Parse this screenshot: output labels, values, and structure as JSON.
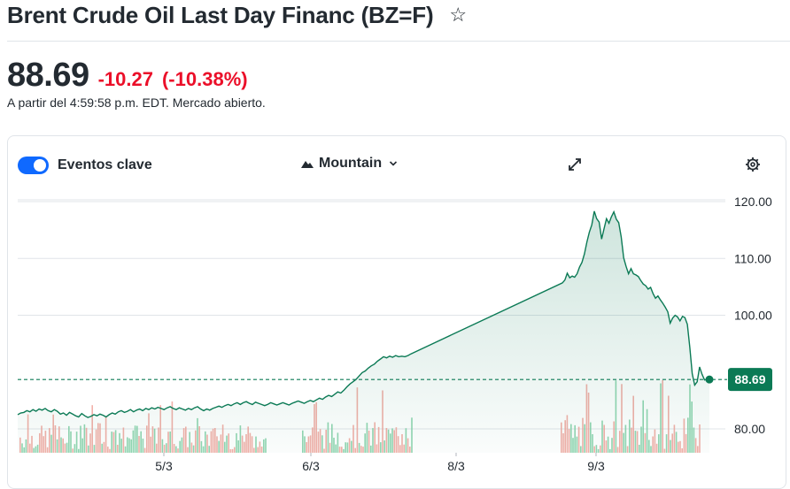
{
  "header": {
    "title": "Brent Crude Oil Last Day Financ (BZ=F)",
    "star_icon": "star-outline-icon"
  },
  "quote": {
    "price": "88.69",
    "change": "-10.27",
    "change_percent": "(-10.38%)",
    "market_time": "A partir del 4:59:58 p.m. EDT. Mercado abierto.",
    "down_color": "#eb0f29"
  },
  "toolbar": {
    "events_label": "Eventos clave",
    "events_enabled": true,
    "chart_type_label": "Mountain",
    "expand_icon": "expand-icon",
    "settings_icon": "gear-icon"
  },
  "chart_data": {
    "type": "area",
    "x_ticks": [
      "5/3",
      "6/3",
      "8/3",
      "9/3"
    ],
    "y_ticks": [
      "120.00",
      "110.00",
      "100.00",
      "80.00"
    ],
    "ylim": [
      76,
      124
    ],
    "current_value_label": "88.69",
    "current_value": 88.69,
    "line_color": "#0b7a55",
    "series": [
      {
        "values": [
          82.5,
          82.8,
          82.9,
          83.2,
          83.0,
          83.4,
          83.1,
          83.5,
          83.3,
          83.6,
          83.2,
          83.0,
          83.4,
          83.1,
          82.6,
          82.8,
          82.4,
          82.9,
          82.6,
          82.3,
          82.1,
          82.7,
          82.3,
          82.0,
          82.2,
          82.5,
          82.3,
          82.6,
          82.4,
          82.1,
          82.5,
          82.8,
          82.6,
          83.0,
          83.2,
          82.9,
          83.1,
          83.4,
          83.0,
          83.3,
          83.5,
          83.2,
          83.6,
          83.4,
          83.7,
          83.5,
          83.8,
          83.6,
          83.4,
          83.7,
          83.9,
          83.6,
          83.4,
          83.7,
          83.5,
          83.3,
          83.6,
          83.4,
          83.7,
          83.9,
          83.5,
          83.2,
          83.5,
          83.3,
          83.6,
          83.8,
          84.0,
          83.8,
          84.1,
          84.3,
          84.1,
          84.4,
          84.6,
          84.3,
          84.6,
          84.8,
          84.5,
          84.3,
          84.7,
          84.5,
          84.3,
          84.1,
          84.3,
          84.6,
          84.4,
          84.2,
          84.4,
          84.6,
          84.4,
          84.2,
          84.5,
          84.7,
          84.9,
          84.7,
          84.5,
          84.8,
          85.0,
          84.8,
          85.1,
          85.4,
          85.2,
          85.6,
          85.9,
          85.7,
          86.1,
          86.5,
          86.3,
          86.8,
          87.4,
          87.9,
          88.3,
          88.7,
          89.3,
          89.9,
          90.2,
          90.7,
          91.1,
          91.4,
          91.9,
          92.3,
          92.7,
          92.5,
          92.8,
          92.6,
          92.9,
          92.7,
          92.8,
          92.7,
          92.9,
          93.2
        ],
        "gap_to": [
          105.7,
          106.2,
          107.4,
          106.6,
          106.9,
          106.7,
          107.3,
          108.5,
          109.3,
          110.8,
          112.9,
          114.6,
          115.9,
          118.3,
          117.0,
          116.4,
          113.4,
          115.2,
          117.0,
          116.2,
          117.3,
          118.2,
          116.9,
          116.3,
          113.8,
          110.1,
          108.6,
          107.3,
          108.2,
          107.3,
          107.1,
          106.8,
          106.1,
          105.5,
          105.2,
          104.6,
          104.9,
          103.8,
          103.0,
          103.4,
          102.7,
          102.1,
          101.4,
          100.6,
          98.6,
          99.5,
          100.0,
          99.7,
          99.0,
          99.8,
          99.6,
          98.4,
          94.3,
          89.7,
          87.7,
          88.3,
          90.9,
          89.6,
          88.6,
          88.7,
          88.69
        ]
      }
    ]
  }
}
